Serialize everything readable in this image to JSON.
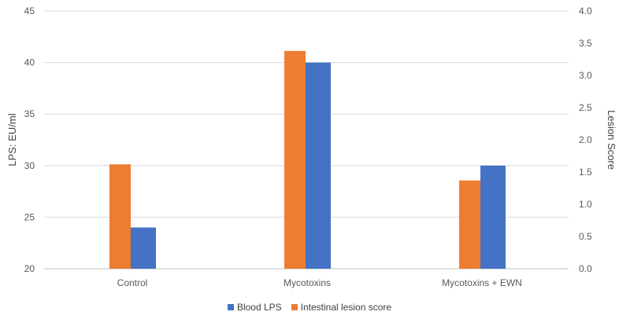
{
  "chart_data": {
    "type": "bar",
    "categories": [
      "Control",
      "Mycotoxins",
      "Mycotoxins + EWN"
    ],
    "series": [
      {
        "name": "Blood LPS",
        "axis": "left",
        "color": "#4472C4",
        "values": [
          24,
          40,
          30
        ]
      },
      {
        "name": "Intestinal lesion score",
        "axis": "right",
        "color": "#ED7D31",
        "values": [
          1.62,
          3.38,
          1.37
        ]
      }
    ],
    "ylabel": "LPS: EU/ml",
    "y2label": "Lesion Score",
    "ylim": [
      20,
      45
    ],
    "y2lim": [
      0,
      4
    ],
    "yticks": [
      "20",
      "25",
      "30",
      "35",
      "40",
      "45"
    ],
    "y2ticks": [
      "0.0",
      "0.5",
      "1.0",
      "1.5",
      "2.0",
      "2.5",
      "3.0",
      "3.5",
      "4.0"
    ],
    "grid": true,
    "legend_position": "bottom"
  }
}
